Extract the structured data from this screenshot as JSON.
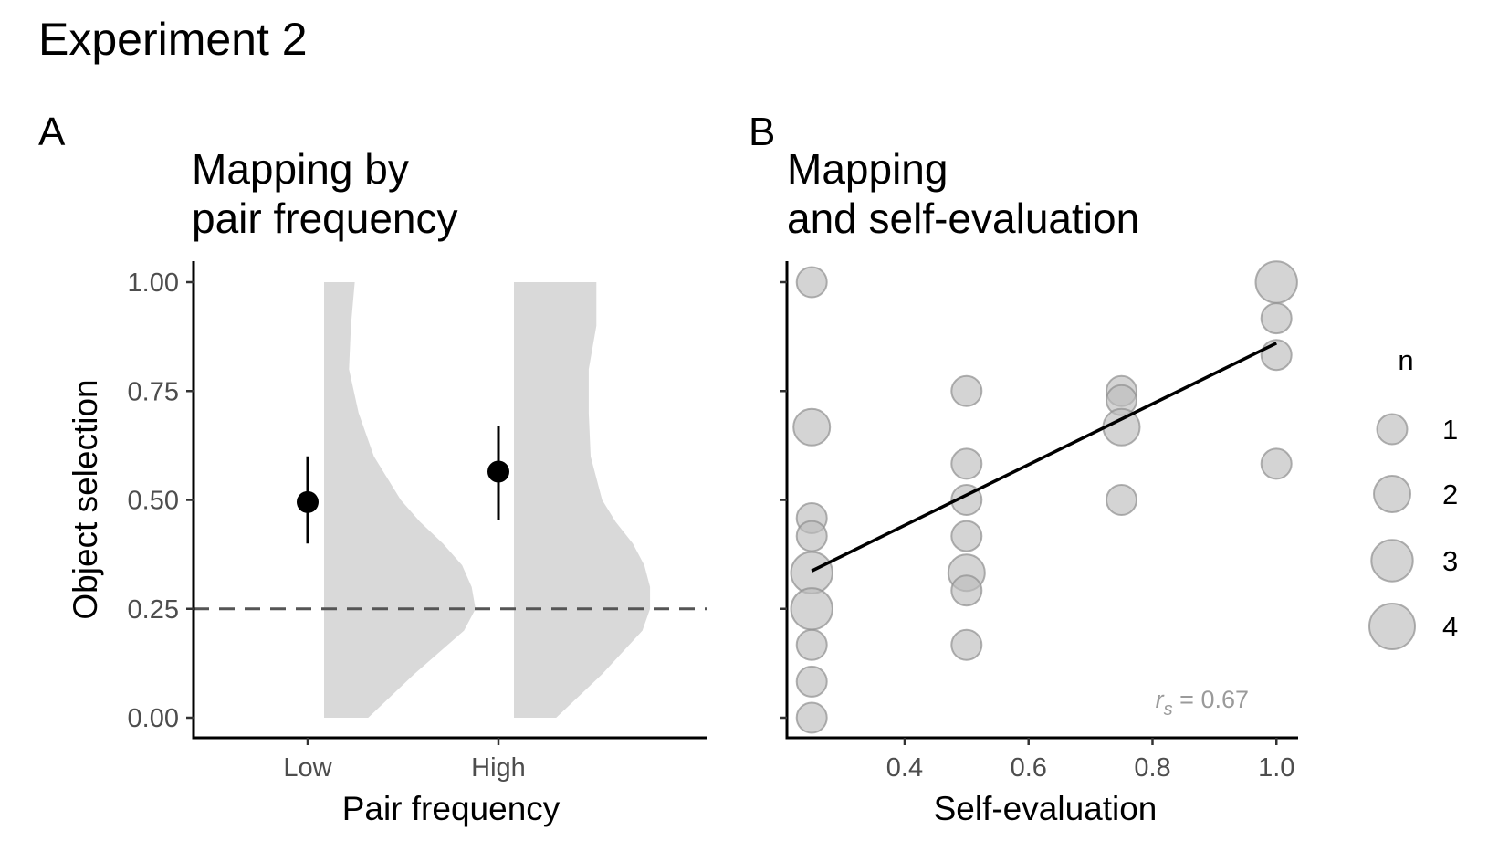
{
  "figure": {
    "title": "Experiment 2",
    "panel_a_letter": "A",
    "panel_b_letter": "B"
  },
  "colors": {
    "violin_fill": "#d9d9d9",
    "point": "#000000",
    "bubble_fill": "#bdbdbd",
    "bubble_stroke": "#8f8f8f",
    "reference_line": "#555555",
    "fit_line": "#000000",
    "annotation": "#9a9a9a"
  },
  "chart_data": [
    {
      "type": "violin-pointrange",
      "title_lines": [
        "Mapping by",
        "pair frequency"
      ],
      "xlabel": "Pair frequency",
      "ylabel": "Object selection",
      "categories": [
        "Low",
        "High"
      ],
      "ylim": [
        0,
        1
      ],
      "yticks": [
        "0.00",
        "0.25",
        "0.50",
        "0.75",
        "1.00"
      ],
      "reference_line": 0.25,
      "means": [
        0.495,
        0.565
      ],
      "error_low": [
        0.4,
        0.455
      ],
      "error_high": [
        0.6,
        0.67
      ],
      "half_violins": [
        {
          "y": [
            0,
            0.1,
            0.2,
            0.25,
            0.3,
            0.35,
            0.4,
            0.45,
            0.5,
            0.6,
            0.7,
            0.8,
            0.9,
            1.0
          ],
          "width": [
            0.23,
            0.47,
            0.73,
            0.79,
            0.77,
            0.72,
            0.62,
            0.5,
            0.4,
            0.26,
            0.18,
            0.13,
            0.14,
            0.16
          ]
        },
        {
          "y": [
            0,
            0.1,
            0.2,
            0.25,
            0.3,
            0.35,
            0.4,
            0.45,
            0.5,
            0.6,
            0.7,
            0.8,
            0.9,
            1.0
          ],
          "width": [
            0.22,
            0.46,
            0.67,
            0.71,
            0.71,
            0.68,
            0.62,
            0.53,
            0.46,
            0.4,
            0.39,
            0.39,
            0.43,
            0.43
          ]
        }
      ]
    },
    {
      "type": "scatter",
      "title_lines": [
        "Mapping",
        "and self-evaluation"
      ],
      "xlabel": "Self-evaluation",
      "ylabel": "Object selection",
      "xlim": [
        0.21,
        1.035
      ],
      "ylim": [
        -0.05,
        1.05
      ],
      "xticks": [
        "0.4",
        "0.6",
        "0.8",
        "1.0"
      ],
      "points": [
        {
          "x": 0.25,
          "y": 1.0,
          "n": 1
        },
        {
          "x": 0.25,
          "y": 0.667,
          "n": 2
        },
        {
          "x": 0.25,
          "y": 0.458,
          "n": 1
        },
        {
          "x": 0.25,
          "y": 0.417,
          "n": 1
        },
        {
          "x": 0.25,
          "y": 0.333,
          "n": 3
        },
        {
          "x": 0.25,
          "y": 0.25,
          "n": 3
        },
        {
          "x": 0.25,
          "y": 0.167,
          "n": 1
        },
        {
          "x": 0.25,
          "y": 0.083,
          "n": 1
        },
        {
          "x": 0.25,
          "y": 0.0,
          "n": 1
        },
        {
          "x": 0.5,
          "y": 0.75,
          "n": 1
        },
        {
          "x": 0.5,
          "y": 0.583,
          "n": 1
        },
        {
          "x": 0.5,
          "y": 0.5,
          "n": 1
        },
        {
          "x": 0.5,
          "y": 0.417,
          "n": 1
        },
        {
          "x": 0.5,
          "y": 0.333,
          "n": 2
        },
        {
          "x": 0.5,
          "y": 0.292,
          "n": 1
        },
        {
          "x": 0.5,
          "y": 0.167,
          "n": 1
        },
        {
          "x": 0.75,
          "y": 0.75,
          "n": 1
        },
        {
          "x": 0.75,
          "y": 0.729,
          "n": 1
        },
        {
          "x": 0.75,
          "y": 0.667,
          "n": 2
        },
        {
          "x": 0.75,
          "y": 0.5,
          "n": 1
        },
        {
          "x": 1.0,
          "y": 1.0,
          "n": 3
        },
        {
          "x": 1.0,
          "y": 0.917,
          "n": 1
        },
        {
          "x": 1.0,
          "y": 0.833,
          "n": 1
        },
        {
          "x": 1.0,
          "y": 0.583,
          "n": 1
        }
      ],
      "fit_line": {
        "x": [
          0.25,
          1.0
        ],
        "y": [
          0.337,
          0.86
        ]
      },
      "annotation": {
        "label": "r",
        "subscript": "s",
        "value_text": " = 0.67"
      },
      "legend": {
        "title": "n",
        "entries": [
          1,
          2,
          3,
          4
        ],
        "placement": "right"
      }
    }
  ]
}
